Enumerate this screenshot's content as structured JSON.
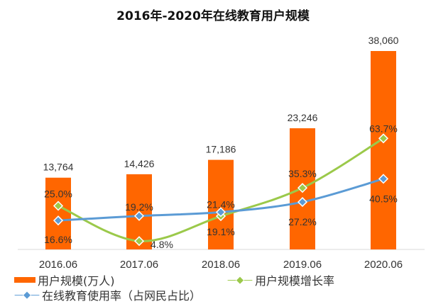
{
  "chart_data": {
    "type": "bar+line",
    "title": "2016年-2020年在线教育用户规模",
    "categories": [
      "2016.06",
      "2017.06",
      "2018.06",
      "2019.06",
      "2020.06"
    ],
    "series": [
      {
        "name": "用户规模(万人)",
        "kind": "bar",
        "values": [
          13764,
          14426,
          17186,
          23246,
          38060
        ],
        "labels": [
          "13,764",
          "14,426",
          "17,186",
          "23,246",
          "38,060"
        ],
        "color": "#ff6600"
      },
      {
        "name": "用户规模增长率",
        "kind": "line",
        "values": [
          25.0,
          4.8,
          19.1,
          35.3,
          63.7
        ],
        "labels": [
          "25.0%",
          "4.8%",
          "19.1%",
          "35.3%",
          "63.7%"
        ],
        "color": "#9bc94a"
      },
      {
        "name": "在线教育使用率（占网民占比）",
        "kind": "line",
        "values": [
          16.6,
          19.2,
          21.4,
          27.2,
          40.5
        ],
        "labels": [
          "16.6%",
          "19.2%",
          "21.4%",
          "27.2%",
          "40.5%"
        ],
        "color": "#5b9bd5"
      }
    ],
    "grid": false,
    "legend": "bottom"
  }
}
